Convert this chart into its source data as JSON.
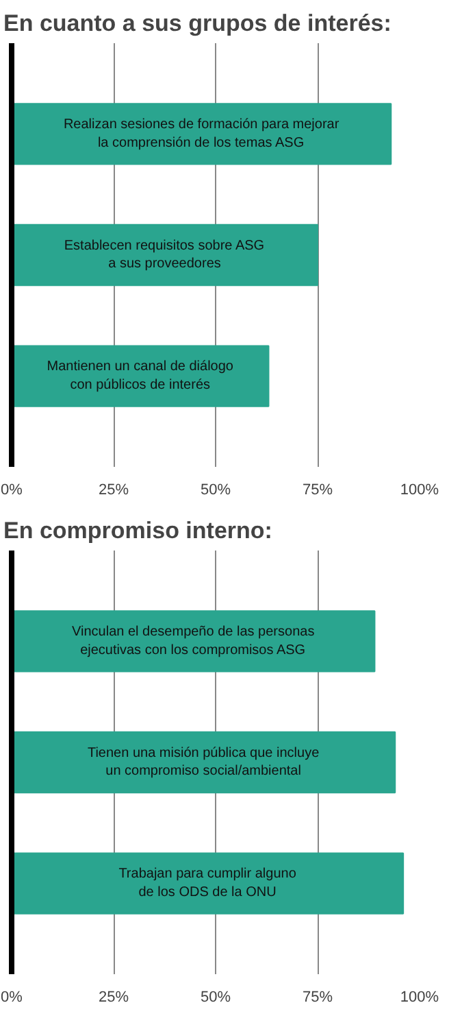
{
  "chart_data": [
    {
      "type": "bar",
      "orientation": "horizontal",
      "title": "En cuanto a sus grupos de interés:",
      "categories": [
        "Realizan sesiones de formación para mejorar\nla comprensión de los temas ASG",
        "Establecen requisitos sobre ASG\na sus proveedores",
        "Mantienen un canal de diálogo\ncon públicos de interés"
      ],
      "values": [
        93,
        75,
        63
      ],
      "color": "#2aa58f",
      "xlim": [
        0,
        100
      ],
      "xticks": [
        {
          "value": 0,
          "label": "0%"
        },
        {
          "value": 25,
          "label": "25%"
        },
        {
          "value": 50,
          "label": "50%"
        },
        {
          "value": 75,
          "label": "75%"
        },
        {
          "value": 100,
          "label": "100%"
        }
      ],
      "grid": "x",
      "tick_labels": "x"
    },
    {
      "type": "bar",
      "orientation": "horizontal",
      "title": "En compromiso interno:",
      "categories": [
        "Vinculan el desempeño de las personas\nejecutivas con los compromisos ASG",
        "Tienen una misión pública que incluye\nun compromiso social/ambiental",
        "Trabajan para cumplir alguno\nde los ODS de la ONU"
      ],
      "values": [
        89,
        94,
        96
      ],
      "color": "#2aa58f",
      "xlim": [
        0,
        100
      ],
      "xticks": [
        {
          "value": 0,
          "label": "0%"
        },
        {
          "value": 25,
          "label": "25%"
        },
        {
          "value": 50,
          "label": "50%"
        },
        {
          "value": 75,
          "label": "75%"
        },
        {
          "value": 100,
          "label": "100%"
        }
      ],
      "grid": "x",
      "tick_labels": "x"
    }
  ]
}
